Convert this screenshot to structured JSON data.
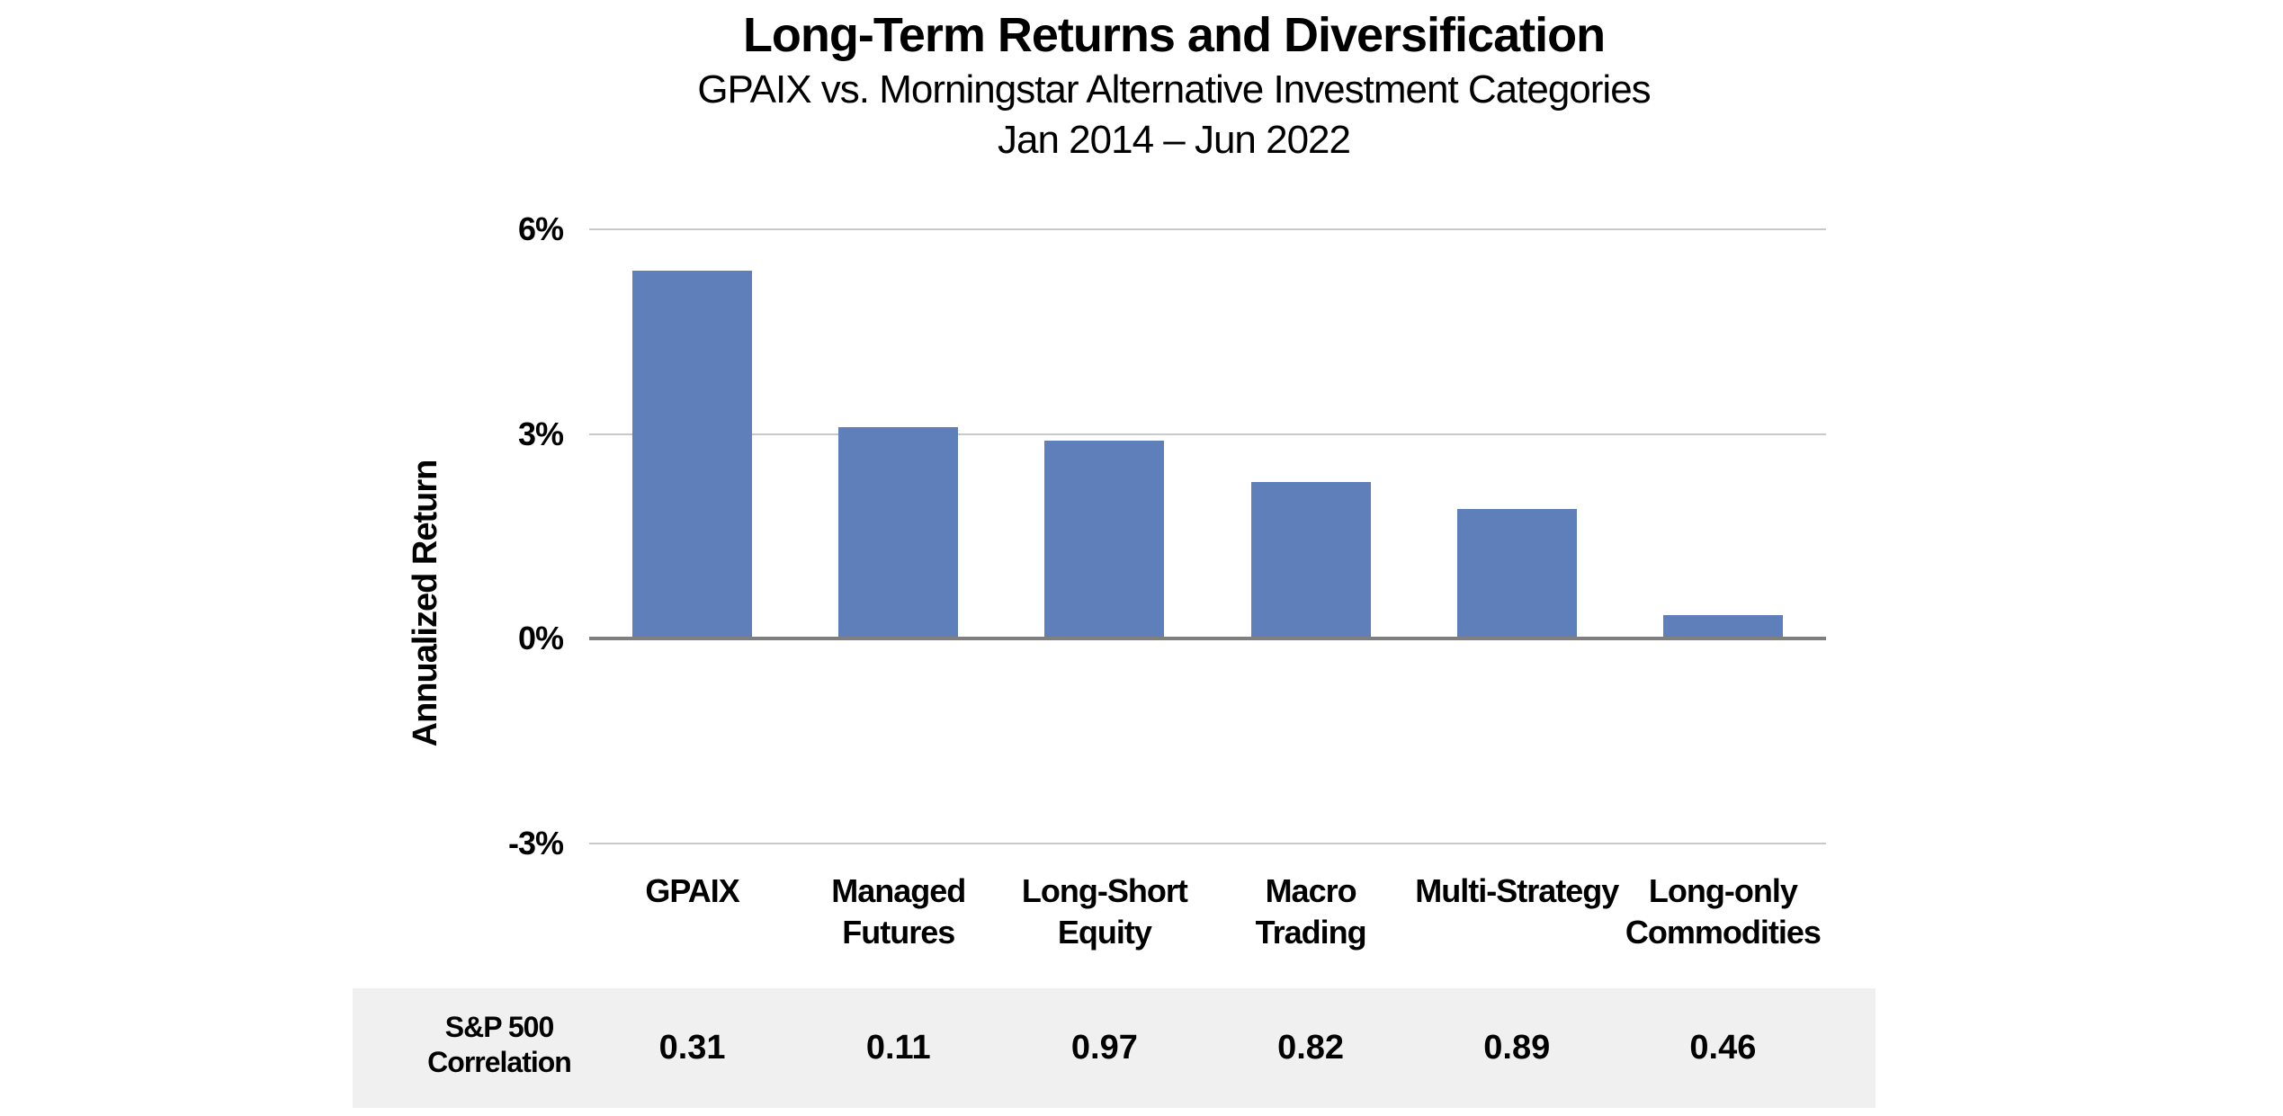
{
  "header": {
    "title": "Long-Term Returns and Diversification",
    "subtitle": "GPAIX vs. Morningstar Alternative Investment Categories",
    "period": "Jan 2014 – Jun 2022"
  },
  "chart_data": {
    "type": "bar",
    "title": "Long-Term Returns and Diversification",
    "subtitle": "GPAIX vs. Morningstar Alternative Investment Categories",
    "period": "Jan 2014 – Jun 2022",
    "categories": [
      "GPAIX",
      "Managed Futures",
      "Long-Short Equity",
      "Macro Trading",
      "Multi-Strategy",
      "Long-only Commodities"
    ],
    "values": [
      5.4,
      3.1,
      2.9,
      2.3,
      1.9,
      0.35
    ],
    "xlabel": "",
    "ylabel": "Annualized Return",
    "ylim": [
      -3,
      6
    ],
    "yticks": [
      6,
      3,
      0,
      -3
    ],
    "ytick_labels": [
      "6%",
      "3%",
      "0%",
      "-3%"
    ],
    "grid": true,
    "legend": false,
    "colors": {
      "bar": "#5E7FBA",
      "grid": "#C9C9C9",
      "axis": "#7F7F7F",
      "band": "#F0F0F0",
      "text": "#000000"
    }
  },
  "table": {
    "row_label": "S&P 500 Correlation",
    "values": [
      "0.31",
      "0.11",
      "0.97",
      "0.82",
      "0.89",
      "0.46"
    ]
  }
}
